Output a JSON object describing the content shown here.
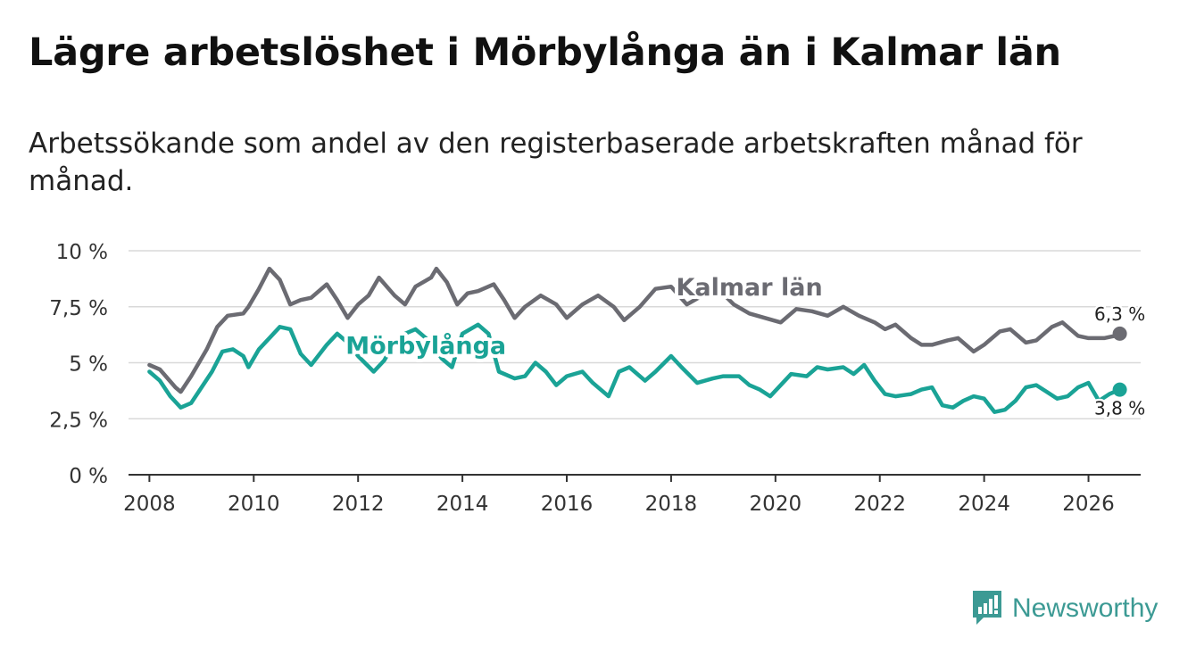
{
  "header": {
    "title": "Lägre arbetslöshet i Mörbylånga än i Kalmar län",
    "subtitle": "Arbetssökande som andel av den registerbaserade arbetskraften månad för månad."
  },
  "brand": {
    "name": "Newsworthy",
    "icon": "newsworthy-logo-icon",
    "color": "#3c9a94"
  },
  "chart_data": {
    "type": "line",
    "title": "Lägre arbetslöshet i Mörbylånga än i Kalmar län",
    "subtitle": "Arbetssökande som andel av den registerbaserade arbetskraften månad för månad.",
    "xlabel": "",
    "ylabel": "",
    "xlim": [
      2007.6,
      2027.0
    ],
    "ylim": [
      0,
      10
    ],
    "x_ticks": [
      2008,
      2010,
      2012,
      2014,
      2016,
      2018,
      2020,
      2022,
      2024,
      2026
    ],
    "x_tick_labels": [
      "2008",
      "2010",
      "2012",
      "2014",
      "2016",
      "2018",
      "2020",
      "2022",
      "2024",
      "2026"
    ],
    "y_ticks": [
      0,
      2.5,
      5,
      7.5,
      10
    ],
    "y_tick_labels": [
      "0 %",
      "2,5 %",
      "5 %",
      "7,5 %",
      "10 %"
    ],
    "grid": true,
    "series": [
      {
        "name": "Kalmar län",
        "color": "#6b6b72",
        "label_at": [
          2019.5,
          8.0
        ],
        "end_label": "6,3 %",
        "points": [
          [
            2008.0,
            4.9
          ],
          [
            2008.2,
            4.7
          ],
          [
            2008.5,
            3.9
          ],
          [
            2008.6,
            3.7
          ],
          [
            2008.8,
            4.4
          ],
          [
            2009.1,
            5.6
          ],
          [
            2009.3,
            6.6
          ],
          [
            2009.5,
            7.1
          ],
          [
            2009.8,
            7.2
          ],
          [
            2009.9,
            7.5
          ],
          [
            2010.1,
            8.3
          ],
          [
            2010.3,
            9.2
          ],
          [
            2010.5,
            8.7
          ],
          [
            2010.7,
            7.6
          ],
          [
            2010.9,
            7.8
          ],
          [
            2011.1,
            7.9
          ],
          [
            2011.4,
            8.5
          ],
          [
            2011.6,
            7.8
          ],
          [
            2011.8,
            7.0
          ],
          [
            2012.0,
            7.6
          ],
          [
            2012.2,
            8.0
          ],
          [
            2012.4,
            8.8
          ],
          [
            2012.7,
            8.0
          ],
          [
            2012.9,
            7.6
          ],
          [
            2013.1,
            8.4
          ],
          [
            2013.4,
            8.8
          ],
          [
            2013.5,
            9.2
          ],
          [
            2013.7,
            8.6
          ],
          [
            2013.9,
            7.6
          ],
          [
            2014.1,
            8.1
          ],
          [
            2014.3,
            8.2
          ],
          [
            2014.6,
            8.5
          ],
          [
            2014.8,
            7.8
          ],
          [
            2015.0,
            7.0
          ],
          [
            2015.2,
            7.5
          ],
          [
            2015.5,
            8.0
          ],
          [
            2015.8,
            7.6
          ],
          [
            2016.0,
            7.0
          ],
          [
            2016.3,
            7.6
          ],
          [
            2016.6,
            8.0
          ],
          [
            2016.9,
            7.5
          ],
          [
            2017.1,
            6.9
          ],
          [
            2017.4,
            7.5
          ],
          [
            2017.7,
            8.3
          ],
          [
            2018.0,
            8.4
          ],
          [
            2018.3,
            7.6
          ],
          [
            2018.6,
            8.0
          ],
          [
            2018.9,
            8.3
          ],
          [
            2019.2,
            7.6
          ],
          [
            2019.5,
            7.2
          ],
          [
            2019.8,
            7.0
          ],
          [
            2020.1,
            6.8
          ],
          [
            2020.4,
            7.4
          ],
          [
            2020.7,
            7.3
          ],
          [
            2021.0,
            7.1
          ],
          [
            2021.3,
            7.5
          ],
          [
            2021.6,
            7.1
          ],
          [
            2021.9,
            6.8
          ],
          [
            2022.1,
            6.5
          ],
          [
            2022.3,
            6.7
          ],
          [
            2022.6,
            6.1
          ],
          [
            2022.8,
            5.8
          ],
          [
            2023.0,
            5.8
          ],
          [
            2023.3,
            6.0
          ],
          [
            2023.5,
            6.1
          ],
          [
            2023.8,
            5.5
          ],
          [
            2024.0,
            5.8
          ],
          [
            2024.3,
            6.4
          ],
          [
            2024.5,
            6.5
          ],
          [
            2024.8,
            5.9
          ],
          [
            2025.0,
            6.0
          ],
          [
            2025.3,
            6.6
          ],
          [
            2025.5,
            6.8
          ],
          [
            2025.8,
            6.2
          ],
          [
            2026.0,
            6.1
          ],
          [
            2026.3,
            6.1
          ],
          [
            2026.5,
            6.2
          ],
          [
            2026.6,
            6.3
          ]
        ]
      },
      {
        "name": "Mörbylånga",
        "color": "#1aa396",
        "label_at": [
          2013.3,
          5.4
        ],
        "end_label": "3,8 %",
        "points": [
          [
            2008.0,
            4.6
          ],
          [
            2008.2,
            4.2
          ],
          [
            2008.4,
            3.5
          ],
          [
            2008.6,
            3.0
          ],
          [
            2008.8,
            3.2
          ],
          [
            2009.0,
            3.9
          ],
          [
            2009.2,
            4.6
          ],
          [
            2009.4,
            5.5
          ],
          [
            2009.6,
            5.6
          ],
          [
            2009.8,
            5.3
          ],
          [
            2009.9,
            4.8
          ],
          [
            2010.1,
            5.6
          ],
          [
            2010.3,
            6.1
          ],
          [
            2010.5,
            6.6
          ],
          [
            2010.7,
            6.5
          ],
          [
            2010.9,
            5.4
          ],
          [
            2011.1,
            4.9
          ],
          [
            2011.4,
            5.8
          ],
          [
            2011.6,
            6.3
          ],
          [
            2011.8,
            5.9
          ],
          [
            2012.0,
            5.3
          ],
          [
            2012.3,
            4.6
          ],
          [
            2012.5,
            5.1
          ],
          [
            2012.7,
            5.9
          ],
          [
            2012.9,
            6.3
          ],
          [
            2013.1,
            6.5
          ],
          [
            2013.4,
            5.9
          ],
          [
            2013.6,
            5.2
          ],
          [
            2013.8,
            4.8
          ],
          [
            2014.0,
            6.3
          ],
          [
            2014.3,
            6.7
          ],
          [
            2014.5,
            6.3
          ],
          [
            2014.7,
            4.6
          ],
          [
            2015.0,
            4.3
          ],
          [
            2015.2,
            4.4
          ],
          [
            2015.4,
            5.0
          ],
          [
            2015.6,
            4.6
          ],
          [
            2015.8,
            4.0
          ],
          [
            2016.0,
            4.4
          ],
          [
            2016.3,
            4.6
          ],
          [
            2016.5,
            4.1
          ],
          [
            2016.8,
            3.5
          ],
          [
            2017.0,
            4.6
          ],
          [
            2017.2,
            4.8
          ],
          [
            2017.5,
            4.2
          ],
          [
            2017.7,
            4.6
          ],
          [
            2018.0,
            5.3
          ],
          [
            2018.2,
            4.8
          ],
          [
            2018.5,
            4.1
          ],
          [
            2018.8,
            4.3
          ],
          [
            2019.0,
            4.4
          ],
          [
            2019.3,
            4.4
          ],
          [
            2019.5,
            4.0
          ],
          [
            2019.7,
            3.8
          ],
          [
            2019.9,
            3.5
          ],
          [
            2020.1,
            4.0
          ],
          [
            2020.3,
            4.5
          ],
          [
            2020.6,
            4.4
          ],
          [
            2020.8,
            4.8
          ],
          [
            2021.0,
            4.7
          ],
          [
            2021.3,
            4.8
          ],
          [
            2021.5,
            4.5
          ],
          [
            2021.7,
            4.9
          ],
          [
            2021.9,
            4.2
          ],
          [
            2022.1,
            3.6
          ],
          [
            2022.3,
            3.5
          ],
          [
            2022.6,
            3.6
          ],
          [
            2022.8,
            3.8
          ],
          [
            2023.0,
            3.9
          ],
          [
            2023.2,
            3.1
          ],
          [
            2023.4,
            3.0
          ],
          [
            2023.6,
            3.3
          ],
          [
            2023.8,
            3.5
          ],
          [
            2024.0,
            3.4
          ],
          [
            2024.2,
            2.8
          ],
          [
            2024.4,
            2.9
          ],
          [
            2024.6,
            3.3
          ],
          [
            2024.8,
            3.9
          ],
          [
            2025.0,
            4.0
          ],
          [
            2025.2,
            3.7
          ],
          [
            2025.4,
            3.4
          ],
          [
            2025.6,
            3.5
          ],
          [
            2025.8,
            3.9
          ],
          [
            2026.0,
            4.1
          ],
          [
            2026.2,
            3.3
          ],
          [
            2026.4,
            3.6
          ],
          [
            2026.6,
            3.8
          ]
        ]
      }
    ]
  }
}
